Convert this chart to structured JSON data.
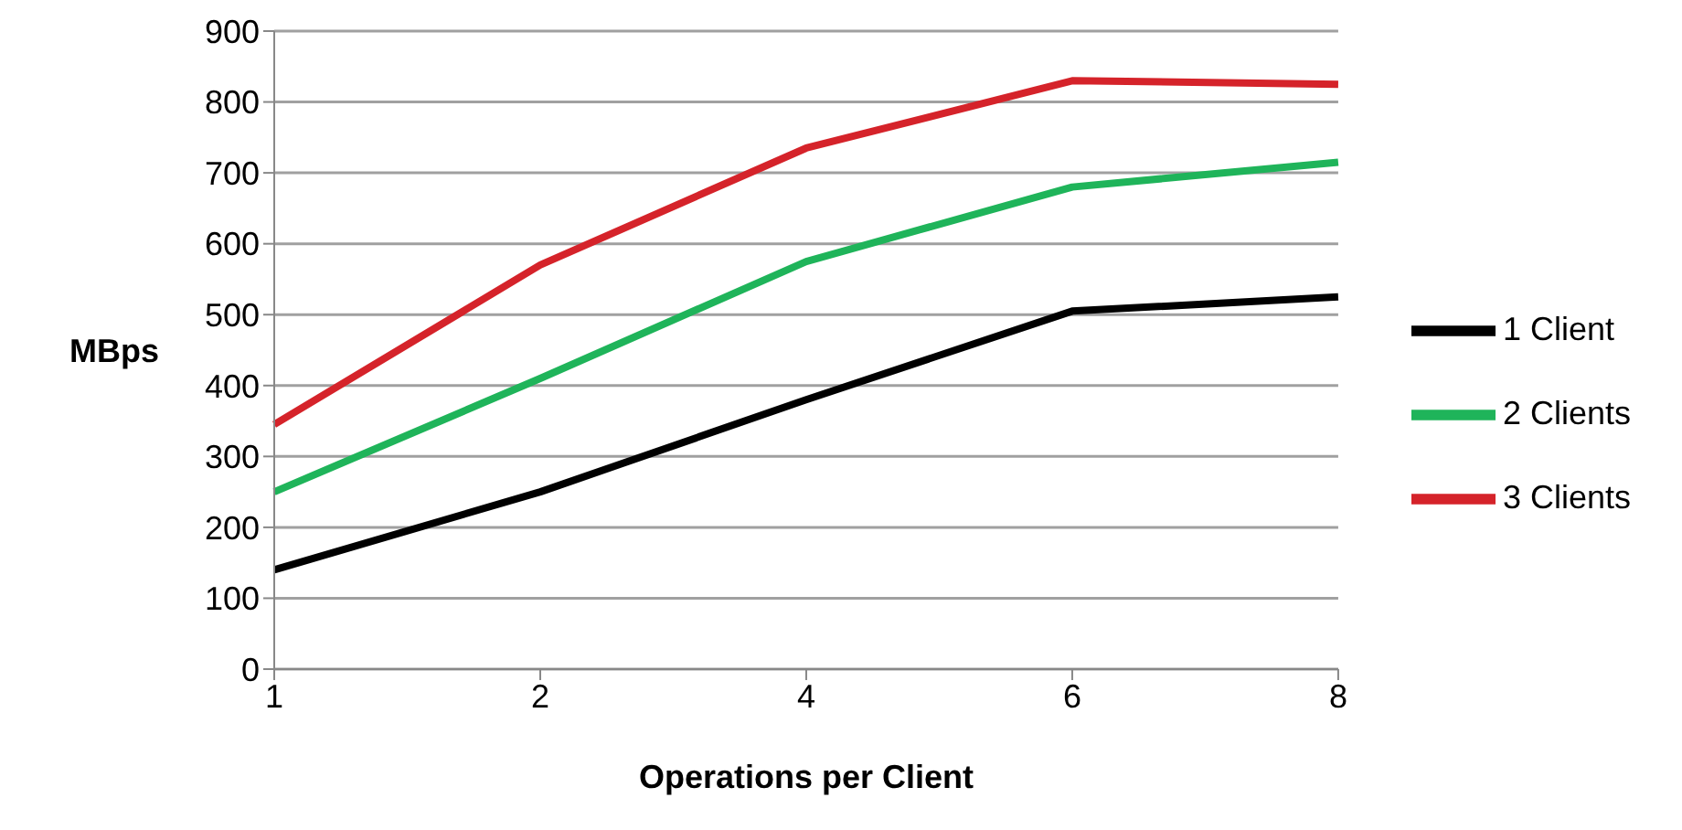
{
  "chart_data": {
    "type": "line",
    "xlabel": "Operations per Client",
    "ylabel": "MBps",
    "categories": [
      "1",
      "2",
      "4",
      "6",
      "8"
    ],
    "series": [
      {
        "name": "1 Client",
        "color": "#000000",
        "values": [
          140,
          250,
          380,
          505,
          525
        ]
      },
      {
        "name": "2 Clients",
        "color": "#1fb45a",
        "values": [
          250,
          410,
          575,
          680,
          715
        ]
      },
      {
        "name": "3 Clients",
        "color": "#d5232a",
        "values": [
          345,
          570,
          735,
          830,
          825
        ]
      }
    ],
    "ylim": [
      0,
      900
    ],
    "yticks": [
      0,
      100,
      200,
      300,
      400,
      500,
      600,
      700,
      800,
      900
    ],
    "grid": "y",
    "legend": "right",
    "marker": "none",
    "line_style": "solid"
  }
}
